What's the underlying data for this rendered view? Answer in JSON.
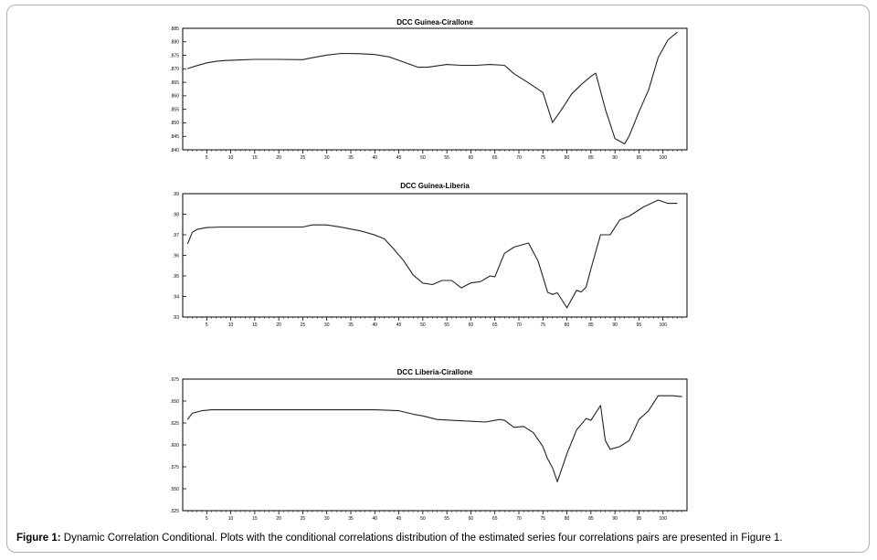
{
  "caption": {
    "label": "Figure 1:",
    "text": "Dynamic Correlation Conditional. Plots with the conditional correlations distribution of the estimated series four correlations pairs are presented in Figure 1."
  },
  "chart_data": [
    {
      "type": "line",
      "title": "DCC Guinea-Cirallone",
      "xlim": [
        0,
        105
      ],
      "xticks": [
        5,
        10,
        15,
        20,
        25,
        30,
        35,
        40,
        45,
        50,
        55,
        60,
        65,
        70,
        75,
        80,
        85,
        90,
        95,
        100
      ],
      "ylim": [
        0.84,
        0.885
      ],
      "yticks": [
        0.84,
        0.845,
        0.85,
        0.855,
        0.86,
        0.865,
        0.87,
        0.875,
        0.88,
        0.885
      ],
      "ytick_labels": [
        ".840",
        ".845",
        ".850",
        ".855",
        ".860",
        ".865",
        ".870",
        ".875",
        ".880",
        ".885"
      ],
      "line_color": "#222222",
      "points": [
        [
          1,
          0.8701
        ],
        [
          3,
          0.8712
        ],
        [
          5,
          0.8722
        ],
        [
          7,
          0.8728
        ],
        [
          9,
          0.8731
        ],
        [
          12,
          0.8733
        ],
        [
          15,
          0.8735
        ],
        [
          20,
          0.8735
        ],
        [
          25,
          0.8734
        ],
        [
          27,
          0.8741
        ],
        [
          30,
          0.8751
        ],
        [
          33,
          0.8757
        ],
        [
          37,
          0.8756
        ],
        [
          40,
          0.8753
        ],
        [
          43,
          0.8744
        ],
        [
          46,
          0.8725
        ],
        [
          49,
          0.8706
        ],
        [
          51,
          0.8706
        ],
        [
          55,
          0.8716
        ],
        [
          58,
          0.8713
        ],
        [
          61,
          0.8713
        ],
        [
          64,
          0.8716
        ],
        [
          67,
          0.8713
        ],
        [
          69,
          0.8682
        ],
        [
          72,
          0.8648
        ],
        [
          75,
          0.8612
        ],
        [
          77,
          0.8501
        ],
        [
          79,
          0.8552
        ],
        [
          81,
          0.8607
        ],
        [
          83,
          0.8642
        ],
        [
          85,
          0.8672
        ],
        [
          86,
          0.8684
        ],
        [
          88,
          0.8551
        ],
        [
          90,
          0.8442
        ],
        [
          92,
          0.8422
        ],
        [
          93,
          0.8452
        ],
        [
          95,
          0.8541
        ],
        [
          97,
          0.8621
        ],
        [
          99,
          0.8742
        ],
        [
          101,
          0.8806
        ],
        [
          103,
          0.8836
        ]
      ]
    },
    {
      "type": "line",
      "title": "DCC Guinea-Liberia",
      "xlim": [
        0,
        105
      ],
      "xticks": [
        5,
        10,
        15,
        20,
        25,
        30,
        35,
        40,
        45,
        50,
        55,
        60,
        65,
        70,
        75,
        80,
        85,
        90,
        95,
        100
      ],
      "ylim": [
        0.93,
        0.99
      ],
      "yticks": [
        0.93,
        0.94,
        0.95,
        0.96,
        0.97,
        0.98,
        0.99
      ],
      "ytick_labels": [
        ".93",
        ".94",
        ".95",
        ".96",
        ".97",
        ".98",
        ".99"
      ],
      "line_color": "#222222",
      "points": [
        [
          1,
          0.9655
        ],
        [
          2,
          0.9712
        ],
        [
          3,
          0.9726
        ],
        [
          5,
          0.9735
        ],
        [
          8,
          0.9738
        ],
        [
          15,
          0.9738
        ],
        [
          20,
          0.9738
        ],
        [
          25,
          0.9738
        ],
        [
          27,
          0.9748
        ],
        [
          30,
          0.9748
        ],
        [
          33,
          0.9737
        ],
        [
          37,
          0.9719
        ],
        [
          40,
          0.9699
        ],
        [
          42,
          0.968
        ],
        [
          44,
          0.9629
        ],
        [
          46,
          0.9574
        ],
        [
          48,
          0.9504
        ],
        [
          50,
          0.9465
        ],
        [
          52,
          0.9458
        ],
        [
          54,
          0.9478
        ],
        [
          56,
          0.9478
        ],
        [
          58,
          0.9442
        ],
        [
          60,
          0.9466
        ],
        [
          62,
          0.9472
        ],
        [
          64,
          0.95
        ],
        [
          65,
          0.9495
        ],
        [
          67,
          0.961
        ],
        [
          69,
          0.964
        ],
        [
          72,
          0.966
        ],
        [
          74,
          0.9572
        ],
        [
          76,
          0.942
        ],
        [
          77,
          0.941
        ],
        [
          78,
          0.9418
        ],
        [
          80,
          0.9345
        ],
        [
          82,
          0.943
        ],
        [
          83,
          0.9422
        ],
        [
          84,
          0.9446
        ],
        [
          85,
          0.9535
        ],
        [
          87,
          0.97
        ],
        [
          89,
          0.97
        ],
        [
          91,
          0.9772
        ],
        [
          93,
          0.9791
        ],
        [
          96,
          0.9836
        ],
        [
          99,
          0.9869
        ],
        [
          101,
          0.9853
        ],
        [
          103,
          0.9853
        ]
      ]
    },
    {
      "type": "line",
      "title": "DCC Liberia-Cirallone",
      "xlim": [
        0,
        105
      ],
      "xticks": [
        5,
        10,
        15,
        20,
        25,
        30,
        35,
        40,
        45,
        50,
        55,
        60,
        65,
        70,
        75,
        80,
        85,
        90,
        95,
        100
      ],
      "ylim": [
        0.525,
        0.675
      ],
      "yticks": [
        0.525,
        0.55,
        0.575,
        0.6,
        0.625,
        0.65,
        0.675
      ],
      "ytick_labels": [
        ".525",
        ".550",
        ".575",
        ".600",
        ".625",
        ".650",
        ".675"
      ],
      "line_color": "#222222",
      "points": [
        [
          1,
          0.629
        ],
        [
          2,
          0.636
        ],
        [
          4,
          0.639
        ],
        [
          6,
          0.64
        ],
        [
          10,
          0.64
        ],
        [
          20,
          0.64
        ],
        [
          30,
          0.64
        ],
        [
          40,
          0.64
        ],
        [
          45,
          0.639
        ],
        [
          48,
          0.635
        ],
        [
          50,
          0.633
        ],
        [
          53,
          0.629
        ],
        [
          56,
          0.628
        ],
        [
          60,
          0.627
        ],
        [
          63,
          0.626
        ],
        [
          66,
          0.629
        ],
        [
          67,
          0.628
        ],
        [
          69,
          0.62
        ],
        [
          71,
          0.621
        ],
        [
          73,
          0.614
        ],
        [
          75,
          0.598
        ],
        [
          76,
          0.584
        ],
        [
          77,
          0.574
        ],
        [
          78,
          0.558
        ],
        [
          80,
          0.59
        ],
        [
          82,
          0.617
        ],
        [
          84,
          0.63
        ],
        [
          85,
          0.628
        ],
        [
          87,
          0.645
        ],
        [
          88,
          0.605
        ],
        [
          89,
          0.595
        ],
        [
          91,
          0.598
        ],
        [
          93,
          0.605
        ],
        [
          95,
          0.629
        ],
        [
          97,
          0.639
        ],
        [
          99,
          0.656
        ],
        [
          102,
          0.656
        ],
        [
          104,
          0.655
        ]
      ]
    }
  ]
}
